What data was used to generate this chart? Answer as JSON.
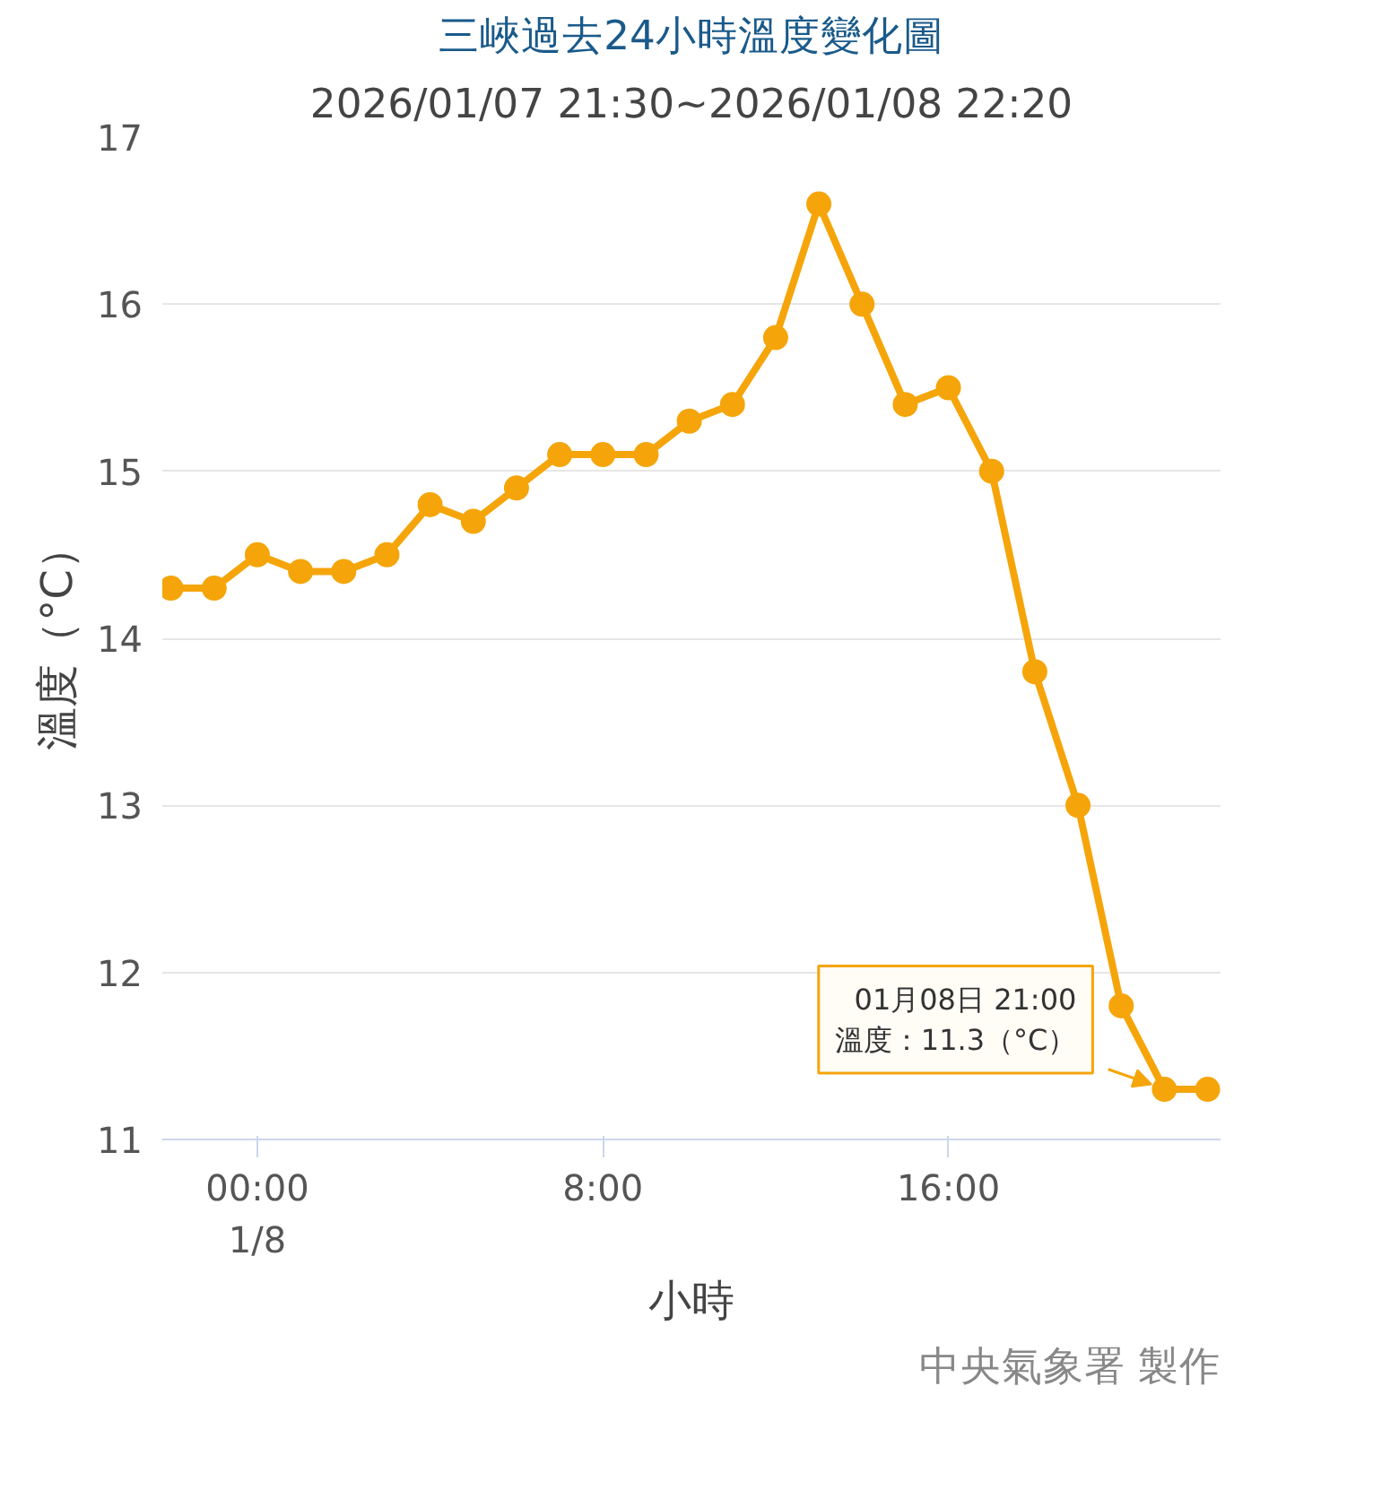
{
  "chart_data": {
    "type": "line",
    "title": "三峽過去24小時溫度變化圖",
    "subtitle": "2026/01/07 21:30~2026/01/08 22:20",
    "xlabel": "小時",
    "ylabel": "溫度（°C）",
    "x": [
      -2,
      -1,
      0,
      1,
      2,
      3,
      4,
      5,
      6,
      7,
      8,
      9,
      10,
      11,
      12,
      13,
      14,
      15,
      16,
      17,
      18,
      19,
      20,
      21,
      22
    ],
    "series": [
      {
        "color": "#f5a50a",
        "values": [
          14.3,
          14.3,
          14.5,
          14.4,
          14.4,
          14.5,
          14.8,
          14.7,
          14.9,
          15.1,
          15.1,
          15.1,
          15.3,
          15.4,
          15.8,
          16.6,
          16.0,
          15.4,
          15.5,
          15.0,
          13.8,
          13.0,
          11.8,
          11.3,
          11.3
        ]
      }
    ],
    "xlim": [
      -2.2,
      22.3
    ],
    "ylim": [
      11,
      17
    ],
    "xticks": [
      {
        "value": 0,
        "label": "00:00\n1/8"
      },
      {
        "value": 8,
        "label": "8:00"
      },
      {
        "value": 16,
        "label": "16:00"
      }
    ],
    "yticks": [
      11,
      12,
      13,
      14,
      15,
      16,
      17
    ],
    "grid": "y",
    "marker": "circle",
    "line_style": "solid",
    "annotations": [
      {
        "text": "01月08日 21:00\n溫度：11.3（°C）",
        "x": 21,
        "y": 11.3
      },
      "中央氣象署 製作"
    ]
  }
}
